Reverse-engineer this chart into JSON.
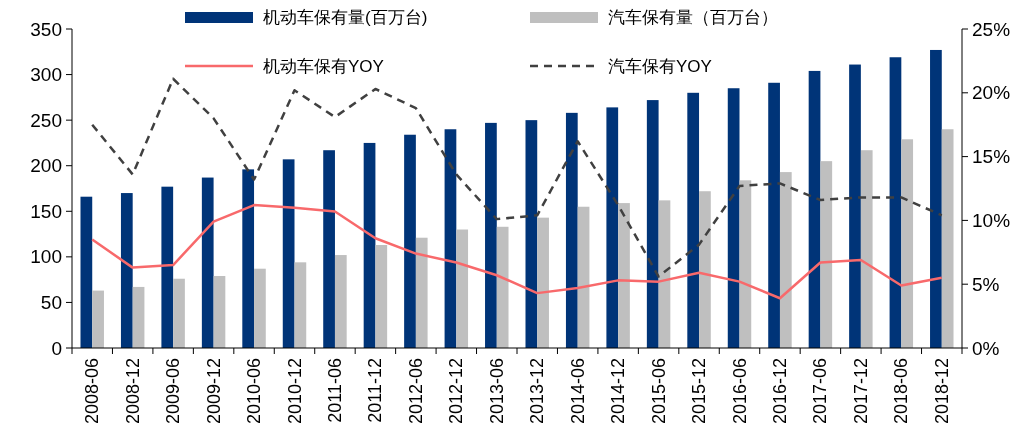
{
  "chart_data": {
    "type": "bar",
    "categories": [
      "2008-06",
      "2008-12",
      "2009-06",
      "2009-12",
      "2010-06",
      "2010-12",
      "2011-06",
      "2011-12",
      "2012-06",
      "2012-12",
      "2013-06",
      "2013-12",
      "2014-06",
      "2014-12",
      "2015-06",
      "2015-12",
      "2016-06",
      "2016-12",
      "2017-06",
      "2017-12",
      "2018-06",
      "2018-12"
    ],
    "series": [
      {
        "name": "机动车保有量(百万台)",
        "color": "#003478",
        "values": [
          166,
          170,
          177,
          187,
          196,
          207,
          217,
          225,
          234,
          240,
          247,
          250,
          258,
          264,
          272,
          280,
          285,
          291,
          304,
          311,
          319,
          327
        ]
      },
      {
        "name": "汽车保有量（百万台）",
        "color": "#bfbfbf",
        "values": [
          63,
          67,
          76,
          79,
          87,
          94,
          102,
          113,
          121,
          130,
          133,
          143,
          155,
          159,
          162,
          172,
          184,
          193,
          205,
          217,
          229,
          240
        ]
      },
      {
        "name": "机动车保有YOY",
        "type": "line",
        "axis": "y2",
        "color": "#f8696b",
        "line_style": "solid",
        "values": [
          8.5,
          6.3,
          6.5,
          9.9,
          11.2,
          11.0,
          10.7,
          8.6,
          7.4,
          6.7,
          5.7,
          4.3,
          4.7,
          5.3,
          5.2,
          5.9,
          5.2,
          3.9,
          6.7,
          6.9,
          4.9,
          5.5
        ]
      },
      {
        "name": "汽车保有YOY",
        "type": "line",
        "axis": "y2",
        "color": "#404040",
        "line_style": "dashed",
        "values": [
          17.5,
          13.6,
          21.1,
          18.0,
          13.2,
          20.2,
          18.1,
          20.3,
          18.8,
          13.6,
          10.1,
          10.4,
          16.2,
          11.2,
          5.6,
          8.1,
          12.7,
          12.9,
          11.6,
          11.8,
          11.8,
          10.4
        ]
      }
    ],
    "ylim": [
      0,
      350
    ],
    "yticks": [
      0,
      50,
      100,
      150,
      200,
      250,
      300,
      350
    ],
    "y2lim": [
      0,
      25
    ],
    "y2ticks": [
      {
        "value": 0,
        "label": "0%"
      },
      {
        "value": 5,
        "label": "5%"
      },
      {
        "value": 10,
        "label": "10%"
      },
      {
        "value": 15,
        "label": "15%"
      },
      {
        "value": 20,
        "label": "20%"
      },
      {
        "value": 25,
        "label": "25%"
      }
    ],
    "grid": false,
    "legend": "top"
  }
}
